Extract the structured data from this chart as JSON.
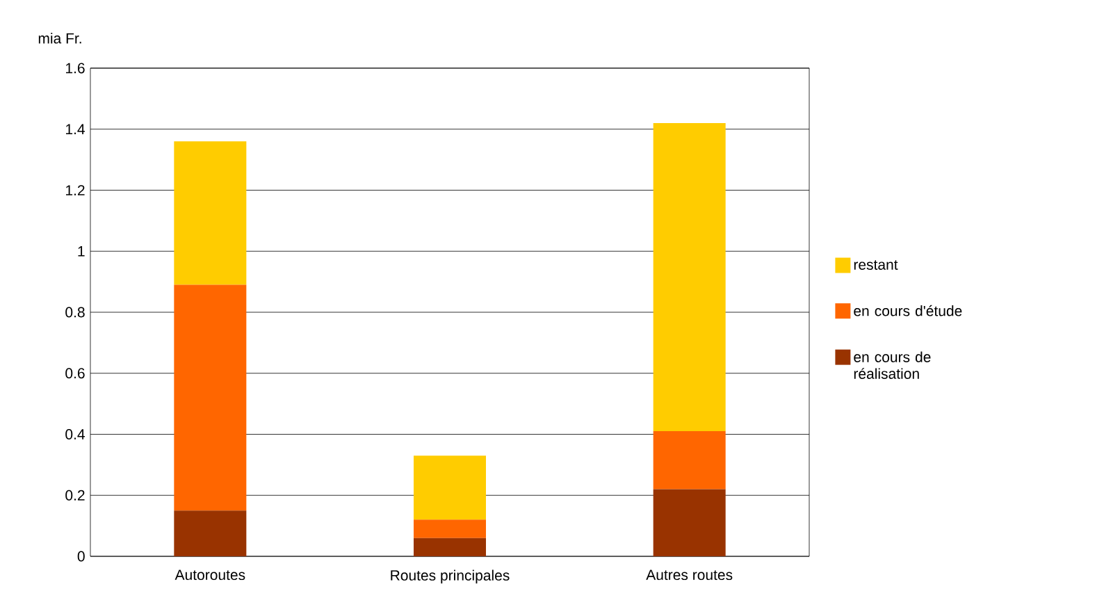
{
  "chart_data": {
    "type": "bar",
    "stacked": true,
    "ylabel": "mia Fr.",
    "categories": [
      "Autoroutes",
      "Routes principales",
      "Autres routes"
    ],
    "series": [
      {
        "name": "en cours de réalisation",
        "color": "#993300",
        "values": [
          0.15,
          0.06,
          0.22
        ]
      },
      {
        "name": "en cours d'étude",
        "color": "#ff6600",
        "values": [
          0.74,
          0.06,
          0.19
        ]
      },
      {
        "name": "restant",
        "color": "#ffcc00",
        "values": [
          0.47,
          0.21,
          1.01
        ]
      }
    ],
    "ylim": [
      0,
      1.6
    ],
    "yticks": [
      0,
      0.2,
      0.4,
      0.6,
      0.8,
      1,
      1.2,
      1.4,
      1.6
    ],
    "grid": "y",
    "legend": "right"
  }
}
